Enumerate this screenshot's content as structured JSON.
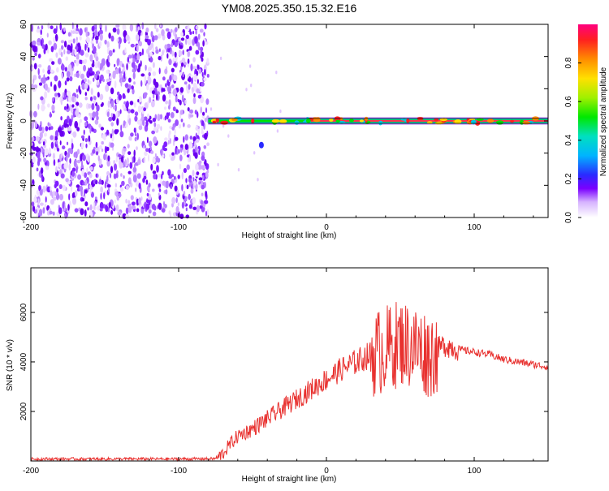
{
  "title": "YM08.2025.350.15.32.E16",
  "chart_data": [
    {
      "type": "heatmap",
      "name": "spectrogram",
      "xlabel": "Height of straight line (km)",
      "ylabel": "Frequency (Hz)",
      "xlim": [
        -200,
        150
      ],
      "ylim": [
        -60,
        60
      ],
      "x_ticks": [
        "-200",
        "-100",
        "0",
        "100"
      ],
      "x_tick_values": [
        -200,
        -100,
        0,
        100
      ],
      "y_ticks": [
        "60",
        "40",
        "20",
        "0",
        "-20",
        "-40",
        "-60"
      ],
      "y_tick_values": [
        60,
        40,
        20,
        0,
        -20,
        -40,
        -60
      ],
      "noise_region_x": [
        -200,
        -80
      ],
      "signal_region_x": [
        -80,
        150
      ],
      "signal_frequency_hz": 0,
      "colorbar": {
        "label": "Normalized spectral amplitude",
        "range": [
          0,
          1
        ],
        "ticks": [
          "0.0",
          "0.2",
          "0.4",
          "0.6",
          "0.8"
        ],
        "tick_values": [
          0,
          0.2,
          0.4,
          0.6,
          0.8
        ]
      }
    },
    {
      "type": "line",
      "name": "snr",
      "xlabel": "Height of straight line (km)",
      "ylabel": "SNR (10 * v/v)",
      "xlim": [
        -200,
        150
      ],
      "ylim": [
        0,
        7800
      ],
      "x_ticks": [
        "-200",
        "-100",
        "0",
        "100"
      ],
      "x_tick_values": [
        -200,
        -100,
        0,
        100
      ],
      "y_ticks": [
        "2000",
        "4000",
        "6000"
      ],
      "y_tick_values": [
        2000,
        4000,
        6000
      ],
      "series": [
        {
          "name": "SNR",
          "color": "#e8312f",
          "points": [
            [
              -200,
              80
            ],
            [
              -150,
              80
            ],
            [
              -100,
              80
            ],
            [
              -75,
              90
            ],
            [
              -70,
              300
            ],
            [
              -65,
              700
            ],
            [
              -60,
              1000
            ],
            [
              -50,
              1300
            ],
            [
              -40,
              1700
            ],
            [
              -30,
              2100
            ],
            [
              -20,
              2500
            ],
            [
              -10,
              2900
            ],
            [
              0,
              3300
            ],
            [
              10,
              3700
            ],
            [
              20,
              4000
            ],
            [
              30,
              4300
            ],
            [
              40,
              4500
            ],
            [
              50,
              4800
            ],
            [
              60,
              4600
            ],
            [
              70,
              4300
            ],
            [
              80,
              4700
            ],
            [
              90,
              4500
            ],
            [
              100,
              4400
            ],
            [
              110,
              4300
            ],
            [
              120,
              4100
            ],
            [
              130,
              4000
            ],
            [
              140,
              3900
            ],
            [
              150,
              3800
            ]
          ]
        }
      ]
    }
  ]
}
